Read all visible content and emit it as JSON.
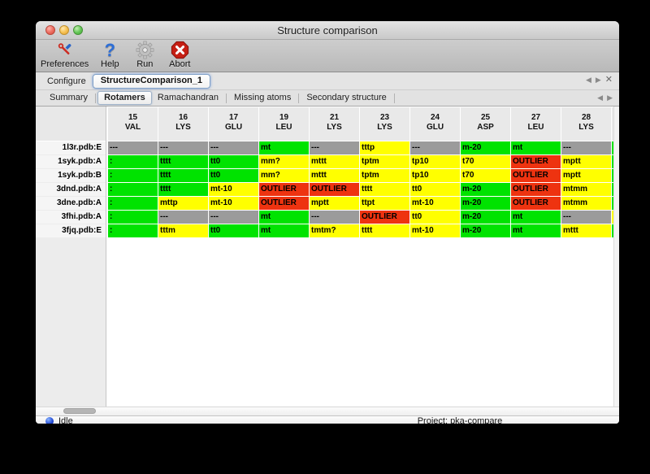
{
  "window": {
    "title": "Structure comparison"
  },
  "toolbar": {
    "items": [
      {
        "id": "preferences",
        "label": "Preferences"
      },
      {
        "id": "help",
        "label": "Help"
      },
      {
        "id": "run",
        "label": "Run"
      },
      {
        "id": "abort",
        "label": "Abort"
      }
    ]
  },
  "configure": {
    "label": "Configure",
    "value": "StructureComparison_1",
    "nav": {
      "prev": "◀",
      "next": "▶",
      "close": "✕"
    }
  },
  "tab_bar": {
    "tabs": [
      "Summary",
      "Rotamers",
      "Ramachandran",
      "Missing atoms",
      "Secondary structure"
    ],
    "selected": "Rotamers",
    "nav": {
      "prev": "◀",
      "next": "▶"
    }
  },
  "legend_colors": {
    "favored": "#00e300",
    "allowed": "#ffff00",
    "outlier": "#ee3310",
    "missing": "#9b9b9b"
  },
  "table": {
    "columns": [
      {
        "num": "15",
        "res": "VAL"
      },
      {
        "num": "16",
        "res": "LYS"
      },
      {
        "num": "17",
        "res": "GLU"
      },
      {
        "num": "19",
        "res": "LEU"
      },
      {
        "num": "21",
        "res": "LYS"
      },
      {
        "num": "23",
        "res": "LYS"
      },
      {
        "num": "24",
        "res": "GLU"
      },
      {
        "num": "25",
        "res": "ASP"
      },
      {
        "num": "27",
        "res": "LEU"
      },
      {
        "num": "28",
        "res": "LYS"
      }
    ],
    "rows": [
      {
        "label": "1l3r.pdb:E",
        "edge": "favored",
        "cells": [
          {
            "text": "---",
            "status": "missing"
          },
          {
            "text": "---",
            "status": "missing"
          },
          {
            "text": "---",
            "status": "missing"
          },
          {
            "text": "mt",
            "status": "favored"
          },
          {
            "text": "---",
            "status": "missing"
          },
          {
            "text": "tttp",
            "status": "allowed"
          },
          {
            "text": "---",
            "status": "missing"
          },
          {
            "text": "m-20",
            "status": "favored"
          },
          {
            "text": "mt",
            "status": "favored"
          },
          {
            "text": "---",
            "status": "missing"
          }
        ]
      },
      {
        "label": "1syk.pdb:A",
        "edge": "favored",
        "cells": [
          {
            "text": ":",
            "status": "favored"
          },
          {
            "text": "tttt",
            "status": "favored"
          },
          {
            "text": "tt0",
            "status": "favored"
          },
          {
            "text": "mm?",
            "status": "allowed"
          },
          {
            "text": "mttt",
            "status": "allowed"
          },
          {
            "text": "tptm",
            "status": "allowed"
          },
          {
            "text": "tp10",
            "status": "allowed"
          },
          {
            "text": "t70",
            "status": "allowed"
          },
          {
            "text": "OUTLIER",
            "status": "outlier"
          },
          {
            "text": "mptt",
            "status": "allowed"
          }
        ]
      },
      {
        "label": "1syk.pdb:B",
        "edge": "favored",
        "cells": [
          {
            "text": ":",
            "status": "favored"
          },
          {
            "text": "tttt",
            "status": "favored"
          },
          {
            "text": "tt0",
            "status": "favored"
          },
          {
            "text": "mm?",
            "status": "allowed"
          },
          {
            "text": "mttt",
            "status": "allowed"
          },
          {
            "text": "tptm",
            "status": "allowed"
          },
          {
            "text": "tp10",
            "status": "allowed"
          },
          {
            "text": "t70",
            "status": "allowed"
          },
          {
            "text": "OUTLIER",
            "status": "outlier"
          },
          {
            "text": "mptt",
            "status": "allowed"
          }
        ]
      },
      {
        "label": "3dnd.pdb:A",
        "edge": "favored",
        "cells": [
          {
            "text": ":",
            "status": "favored"
          },
          {
            "text": "tttt",
            "status": "favored"
          },
          {
            "text": "mt-10",
            "status": "allowed"
          },
          {
            "text": "OUTLIER",
            "status": "outlier"
          },
          {
            "text": "OUTLIER",
            "status": "outlier"
          },
          {
            "text": "tttt",
            "status": "allowed"
          },
          {
            "text": "tt0",
            "status": "allowed"
          },
          {
            "text": "m-20",
            "status": "favored"
          },
          {
            "text": "OUTLIER",
            "status": "outlier"
          },
          {
            "text": "mtmm",
            "status": "allowed"
          }
        ]
      },
      {
        "label": "3dne.pdb:A",
        "edge": "favored",
        "cells": [
          {
            "text": ":",
            "status": "favored"
          },
          {
            "text": "mttp",
            "status": "allowed"
          },
          {
            "text": "mt-10",
            "status": "allowed"
          },
          {
            "text": "OUTLIER",
            "status": "outlier"
          },
          {
            "text": "mptt",
            "status": "allowed"
          },
          {
            "text": "ttpt",
            "status": "allowed"
          },
          {
            "text": "mt-10",
            "status": "allowed"
          },
          {
            "text": "m-20",
            "status": "favored"
          },
          {
            "text": "OUTLIER",
            "status": "outlier"
          },
          {
            "text": "mtmm",
            "status": "allowed"
          }
        ]
      },
      {
        "label": "3fhi.pdb:A",
        "edge": "allowed",
        "cells": [
          {
            "text": ":",
            "status": "favored"
          },
          {
            "text": "---",
            "status": "missing"
          },
          {
            "text": "---",
            "status": "missing"
          },
          {
            "text": "mt",
            "status": "favored"
          },
          {
            "text": "---",
            "status": "missing"
          },
          {
            "text": "OUTLIER",
            "status": "outlier"
          },
          {
            "text": "tt0",
            "status": "allowed"
          },
          {
            "text": "m-20",
            "status": "favored"
          },
          {
            "text": "mt",
            "status": "favored"
          },
          {
            "text": "---",
            "status": "missing"
          }
        ]
      },
      {
        "label": "3fjq.pdb:E",
        "edge": "favored",
        "cells": [
          {
            "text": ":",
            "status": "favored"
          },
          {
            "text": "tttm",
            "status": "allowed"
          },
          {
            "text": "tt0",
            "status": "favored"
          },
          {
            "text": "mt",
            "status": "favored"
          },
          {
            "text": "tmtm?",
            "status": "allowed"
          },
          {
            "text": "tttt",
            "status": "allowed"
          },
          {
            "text": "mt-10",
            "status": "allowed"
          },
          {
            "text": "m-20",
            "status": "favored"
          },
          {
            "text": "mt",
            "status": "favored"
          },
          {
            "text": "mttt",
            "status": "allowed"
          }
        ]
      }
    ]
  },
  "statusbar": {
    "status": "Idle",
    "project": "Project: pka-compare"
  }
}
